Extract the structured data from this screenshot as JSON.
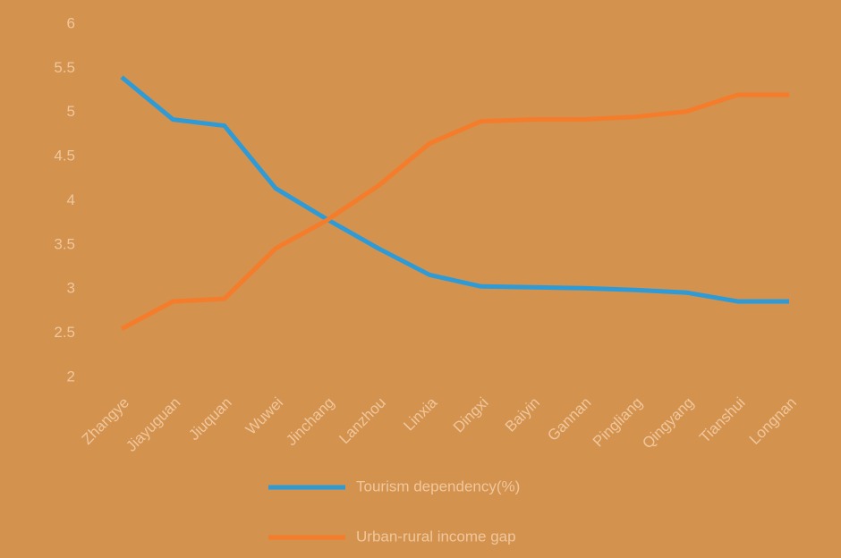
{
  "chart_data": {
    "type": "line",
    "categories": [
      "Zhangye",
      "Jiayuguan",
      "Jiuquan",
      "Wuwei",
      "Jinchang",
      "Lanzhou",
      "Linxia",
      "Dingxi",
      "Baiyin",
      "Gannan",
      "Pingliang",
      "Qingyang",
      "Tianshui",
      "Longnan"
    ],
    "series": [
      {
        "name": "Tourism dependency(%)",
        "color": "#2e9bd6",
        "values": [
          5.4,
          4.92,
          4.85,
          4.14,
          3.79,
          3.46,
          3.16,
          3.03,
          3.02,
          3.01,
          2.99,
          2.96,
          2.86,
          2.86
        ]
      },
      {
        "name": "Urban-rural income gap",
        "color": "#f57c2a",
        "values": [
          2.55,
          2.86,
          2.89,
          3.46,
          3.78,
          4.17,
          4.65,
          4.9,
          4.92,
          4.92,
          4.95,
          5.01,
          5.2,
          5.2
        ]
      }
    ],
    "ylim": [
      2,
      6
    ],
    "yticks": [
      2,
      2.5,
      3,
      3.5,
      4,
      4.5,
      5,
      5.5,
      6
    ],
    "grid": false,
    "legend": "bottom"
  }
}
